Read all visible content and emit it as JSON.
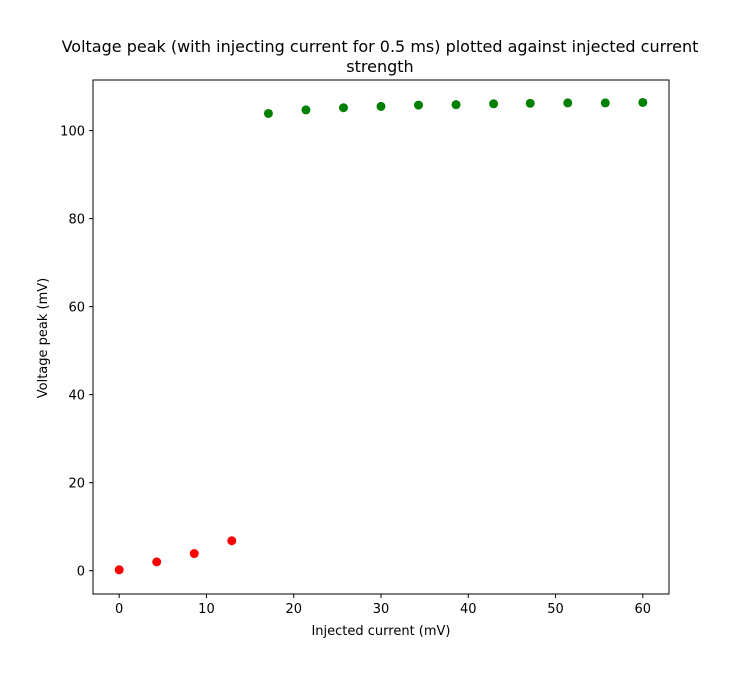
{
  "chart_data": {
    "type": "scatter",
    "title_line1": "Voltage peak (with injecting current for 0.5 ms) plotted against injected current",
    "title_line2": "strength",
    "xlabel": "Injected current (mV)",
    "ylabel": "Voltage peak (mV)",
    "xlim": [
      -3,
      63
    ],
    "ylim": [
      -5.3,
      111.5
    ],
    "xticks": [
      0,
      10,
      20,
      30,
      40,
      50,
      60
    ],
    "yticks": [
      0,
      20,
      40,
      60,
      80,
      100
    ],
    "xtick_labels": [
      "0",
      "10",
      "20",
      "30",
      "40",
      "50",
      "60"
    ],
    "ytick_labels": [
      "0",
      "20",
      "40",
      "60",
      "80",
      "100"
    ],
    "grid": false,
    "legend": "none",
    "series": [
      {
        "color": "#ff0000",
        "points": [
          [
            0,
            0.2
          ],
          [
            4.3,
            2.0
          ],
          [
            8.6,
            3.9
          ],
          [
            12.9,
            6.8
          ]
        ]
      },
      {
        "color": "#008000",
        "points": [
          [
            17.1,
            103.9
          ],
          [
            21.4,
            104.7
          ],
          [
            25.7,
            105.2
          ],
          [
            30.0,
            105.5
          ],
          [
            34.3,
            105.8
          ],
          [
            38.6,
            105.9
          ],
          [
            42.9,
            106.1
          ],
          [
            47.1,
            106.2
          ],
          [
            51.4,
            106.3
          ],
          [
            55.7,
            106.3
          ],
          [
            60.0,
            106.4
          ]
        ]
      }
    ]
  }
}
